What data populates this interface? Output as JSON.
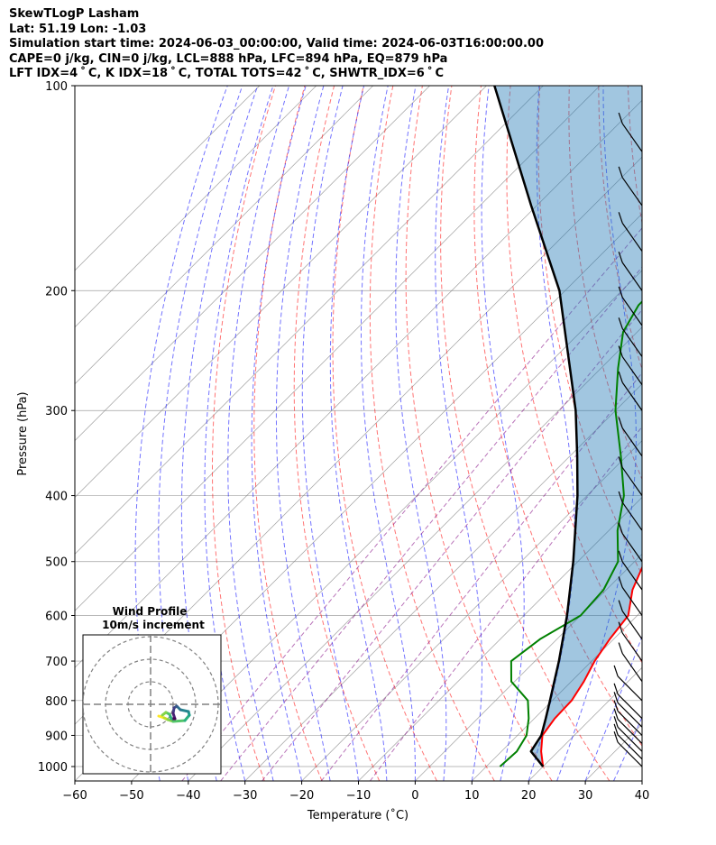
{
  "header": {
    "line1": "SkewTLogP Lasham",
    "line2": "Lat: 51.19   Lon: -1.03",
    "line3": "Simulation start time: 2024-06-03_00:00:00, Valid time: 2024-06-03T16:00:00.00",
    "line4": "CAPE=0 j/kg, CIN=0 j/kg, LCL=888 hPa, LFC=894 hPa, EQ=879 hPa",
    "line5": "LFT IDX=4 ˚ C, K IDX=18 ˚ C, TOTAL TOTS=42 ˚ C, SHWTR_IDX=6 ˚ C"
  },
  "chart_data": {
    "type": "line",
    "xlabel": "Temperature (˚C)",
    "ylabel": "Pressure (hPa)",
    "xlim": [
      -60,
      40
    ],
    "ylim": [
      1050,
      100
    ],
    "x_ticks": [
      -60,
      -50,
      -40,
      -30,
      -20,
      -10,
      0,
      10,
      20,
      30,
      40
    ],
    "y_ticks": [
      1000,
      900,
      800,
      700,
      600,
      500,
      400,
      300,
      200,
      100
    ],
    "y_scale": "log",
    "skew": true,
    "grid": true,
    "colors": {
      "temperature": "#ff0000",
      "dewpoint": "#008000",
      "parcel": "#000000",
      "cape_fill": "#1f77b4",
      "dry_adiabat": "#ff0000",
      "moist_adiabat": "#0000ff",
      "mixing_ratio": "#800080",
      "isotherm": "#808080"
    },
    "series": [
      {
        "key": "temperature",
        "points": [
          [
            1000,
            20
          ],
          [
            950,
            17
          ],
          [
            900,
            14.4
          ],
          [
            850,
            13.6
          ],
          [
            800,
            13.4
          ],
          [
            750,
            12.2
          ],
          [
            700,
            10.5
          ],
          [
            650,
            9.3
          ],
          [
            600,
            8.4
          ],
          [
            550,
            4.6
          ],
          [
            500,
            1.8
          ],
          [
            450,
            -2.4
          ],
          [
            400,
            -6.2
          ],
          [
            350,
            -11.6
          ],
          [
            300,
            -19
          ],
          [
            260,
            -25.5
          ],
          [
            240,
            -29
          ],
          [
            220,
            -32
          ],
          [
            210,
            -32.5
          ],
          [
            200,
            -31.5
          ],
          [
            190,
            -31.5
          ],
          [
            170,
            -30.5
          ],
          [
            150,
            -30.5
          ],
          [
            130,
            -30.5
          ],
          [
            115,
            -30.3
          ],
          [
            100,
            -31
          ]
        ]
      },
      {
        "key": "dewpoint",
        "points": [
          [
            1000,
            12.4
          ],
          [
            950,
            12.7
          ],
          [
            900,
            11.6
          ],
          [
            850,
            9
          ],
          [
            800,
            5.7
          ],
          [
            750,
            -0.6
          ],
          [
            700,
            -4.2
          ],
          [
            650,
            -3
          ],
          [
            600,
            0
          ],
          [
            550,
            -0.5
          ],
          [
            500,
            -2.9
          ],
          [
            450,
            -8.5
          ],
          [
            400,
            -13.5
          ],
          [
            350,
            -21
          ],
          [
            300,
            -30
          ],
          [
            260,
            -37
          ],
          [
            230,
            -42.5
          ],
          [
            210,
            -44.5
          ],
          [
            190,
            -44.5
          ],
          [
            175,
            -43.5
          ],
          [
            160,
            -44.5
          ],
          [
            145,
            -50
          ],
          [
            135,
            -58
          ],
          [
            130,
            -58
          ],
          [
            120,
            -57
          ],
          [
            110,
            -56
          ],
          [
            100,
            -56
          ]
        ]
      },
      {
        "key": "parcel",
        "points": [
          [
            1000,
            20
          ],
          [
            950,
            15.2
          ],
          [
            900,
            14.2
          ],
          [
            850,
            12
          ],
          [
            800,
            9.6
          ],
          [
            700,
            4.2
          ],
          [
            600,
            -2.4
          ],
          [
            500,
            -10.8
          ],
          [
            400,
            -21.7
          ],
          [
            350,
            -28.7
          ],
          [
            300,
            -37
          ],
          [
            250,
            -47.8
          ],
          [
            200,
            -61
          ],
          [
            150,
            -81
          ],
          [
            100,
            -108.6
          ]
        ]
      }
    ],
    "inset": {
      "title": "Wind Profile",
      "subtitle": "10m/s increment"
    }
  }
}
